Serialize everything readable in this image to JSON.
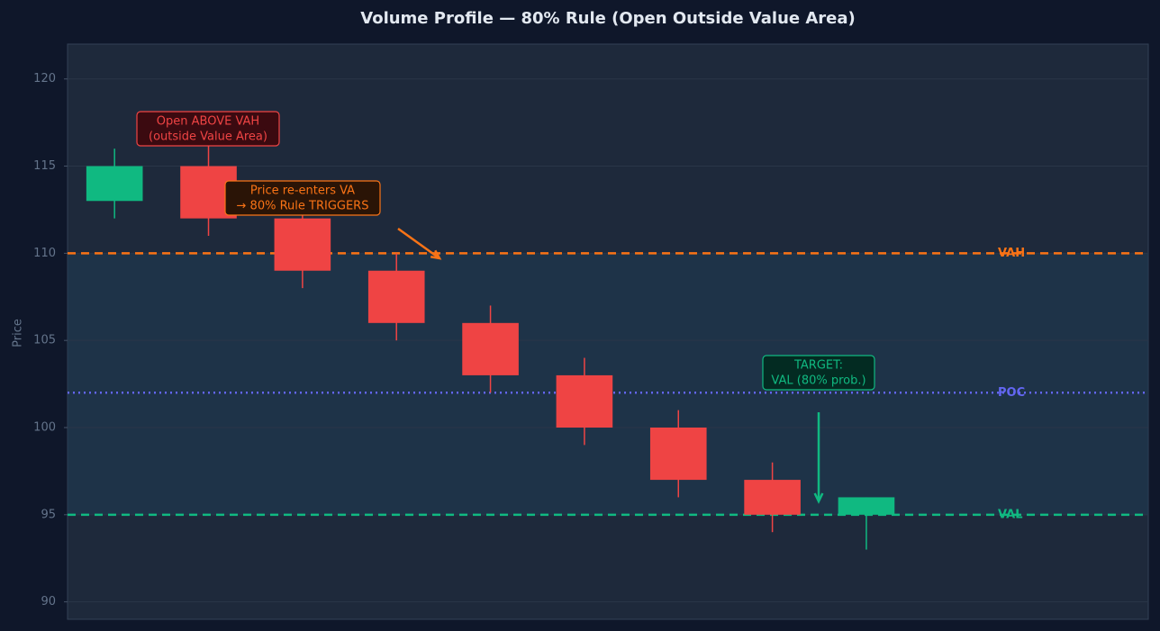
{
  "chart_data": {
    "type": "candlestick",
    "title": "Volume Profile — 80% Rule (Open Outside Value Area)",
    "ylabel": "Price",
    "x": [
      0,
      1,
      2,
      3,
      4,
      5,
      6,
      7,
      8
    ],
    "xlim": [
      -0.5,
      11
    ],
    "open": [
      113,
      115,
      112,
      109,
      106,
      103,
      100,
      97,
      95
    ],
    "high": [
      116,
      117,
      112.5,
      110,
      107,
      104,
      101,
      98,
      96
    ],
    "low": [
      112,
      111,
      108,
      105,
      102,
      99,
      96,
      94,
      93
    ],
    "close": [
      115,
      112,
      109,
      106,
      103,
      100,
      97,
      95,
      96
    ],
    "up_color": "#10b981",
    "down_color": "#ef4444",
    "ylim": [
      89,
      122
    ],
    "yticks": [
      90,
      95,
      100,
      105,
      110,
      115,
      120
    ],
    "grid": true,
    "levels": [
      {
        "name": "VAH",
        "value": 110,
        "color": "#f97316",
        "style": "dashed"
      },
      {
        "name": "POC",
        "value": 102,
        "color": "#6366f1",
        "style": "dotted"
      },
      {
        "name": "VAL",
        "value": 95,
        "color": "#10b981",
        "style": "dashed"
      }
    ],
    "annotations": [
      {
        "lines": [
          "Open ABOVE VAH",
          "(outside Value Area)"
        ],
        "color": "#ef4444"
      },
      {
        "lines": [
          "Price re-enters VA",
          "→ 80% Rule TRIGGERS"
        ],
        "color": "#f97316"
      },
      {
        "lines": [
          "TARGET:",
          "VAL (80% prob.)"
        ],
        "color": "#10b981"
      }
    ]
  }
}
